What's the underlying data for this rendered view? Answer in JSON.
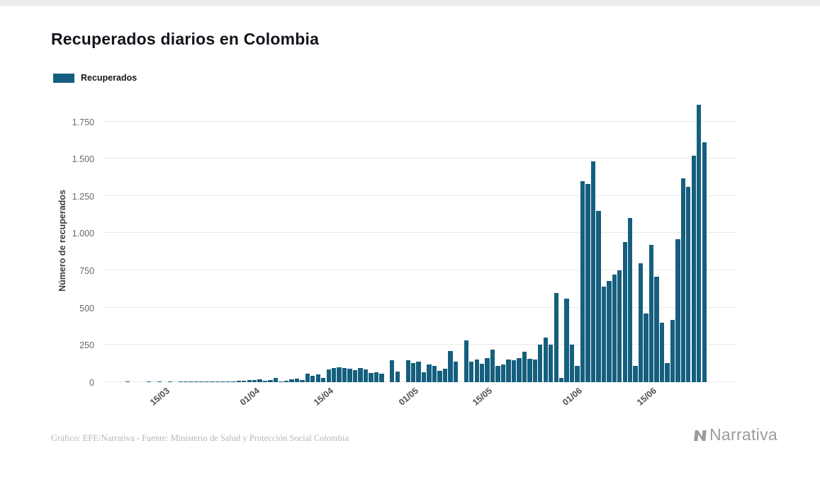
{
  "page": {
    "background": "#ffffff",
    "top_strip_color": "#ececec"
  },
  "chart_data": {
    "type": "bar",
    "title": "Recuperados diarios en Colombia",
    "legend": "Recuperados",
    "ylabel": "Número de recuperados",
    "bar_color": "#155f7e",
    "grid_color": "#e8e8e8",
    "grid": true,
    "legend_position": "top-left",
    "y_max": 1900,
    "yticks": [
      {
        "value": 0,
        "label": "0"
      },
      {
        "value": 250,
        "label": "250"
      },
      {
        "value": 500,
        "label": "500"
      },
      {
        "value": 750,
        "label": "750"
      },
      {
        "value": 1000,
        "label": "1.000"
      },
      {
        "value": 1250,
        "label": "1.250"
      },
      {
        "value": 1500,
        "label": "1.500"
      },
      {
        "value": 1750,
        "label": "1.750"
      }
    ],
    "xticks": [
      "15/03",
      "01/04",
      "15/04",
      "01/05",
      "15/05",
      "01/06",
      "15/06"
    ],
    "x": [
      "04/03",
      "05/03",
      "06/03",
      "07/03",
      "08/03",
      "09/03",
      "10/03",
      "11/03",
      "12/03",
      "13/03",
      "14/03",
      "15/03",
      "16/03",
      "17/03",
      "18/03",
      "19/03",
      "20/03",
      "21/03",
      "22/03",
      "23/03",
      "24/03",
      "25/03",
      "26/03",
      "27/03",
      "28/03",
      "29/03",
      "30/03",
      "31/03",
      "01/04",
      "02/04",
      "03/04",
      "04/04",
      "05/04",
      "06/04",
      "07/04",
      "08/04",
      "09/04",
      "10/04",
      "11/04",
      "12/04",
      "13/04",
      "14/04",
      "15/04",
      "16/04",
      "17/04",
      "18/04",
      "19/04",
      "20/04",
      "21/04",
      "22/04",
      "23/04",
      "24/04",
      "25/04",
      "26/04",
      "27/04",
      "28/04",
      "29/04",
      "30/04",
      "01/05",
      "02/05",
      "03/05",
      "04/05",
      "05/05",
      "06/05",
      "07/05",
      "08/05",
      "09/05",
      "10/05",
      "11/05",
      "12/05",
      "13/05",
      "14/05",
      "15/05",
      "16/05",
      "17/05",
      "18/05",
      "19/05",
      "20/05",
      "21/05",
      "22/05",
      "23/05",
      "24/05",
      "25/05",
      "26/05",
      "27/05",
      "28/05",
      "29/05",
      "30/05",
      "31/05",
      "01/06",
      "02/06",
      "03/06",
      "04/06",
      "05/06",
      "06/06",
      "07/06",
      "08/06",
      "09/06",
      "10/06",
      "11/06",
      "12/06",
      "13/06",
      "14/06",
      "15/06",
      "16/06",
      "17/06",
      "18/06",
      "19/06",
      "20/06",
      "21/06",
      "22/06",
      "23/06",
      "24/06",
      "25/06"
    ],
    "values": [
      0,
      0,
      0,
      0,
      1,
      0,
      0,
      0,
      1,
      0,
      1,
      0,
      1,
      0,
      1,
      2,
      1,
      2,
      3,
      2,
      5,
      3,
      5,
      4,
      6,
      8,
      10,
      15,
      15,
      18,
      10,
      12,
      30,
      5,
      8,
      20,
      25,
      15,
      55,
      45,
      50,
      30,
      85,
      95,
      100,
      95,
      90,
      80,
      95,
      85,
      60,
      65,
      55,
      0,
      145,
      70,
      0,
      145,
      130,
      140,
      65,
      120,
      110,
      75,
      90,
      210,
      140,
      0,
      280,
      140,
      150,
      125,
      160,
      220,
      110,
      120,
      150,
      145,
      160,
      205,
      155,
      150,
      250,
      300,
      250,
      600,
      30,
      560,
      250,
      110,
      1350,
      1330,
      1480,
      1150,
      640,
      680,
      720,
      750,
      940,
      1100,
      110,
      800,
      460,
      920,
      710,
      400,
      130,
      420,
      960,
      1370,
      1310,
      1520,
      1860,
      1610
    ]
  },
  "footer": {
    "caption": "Gráfico: EFE/Narrativa - Fuente: Ministerio de Salud y Protección Social Colombia",
    "logo_text": "Narrativa"
  }
}
